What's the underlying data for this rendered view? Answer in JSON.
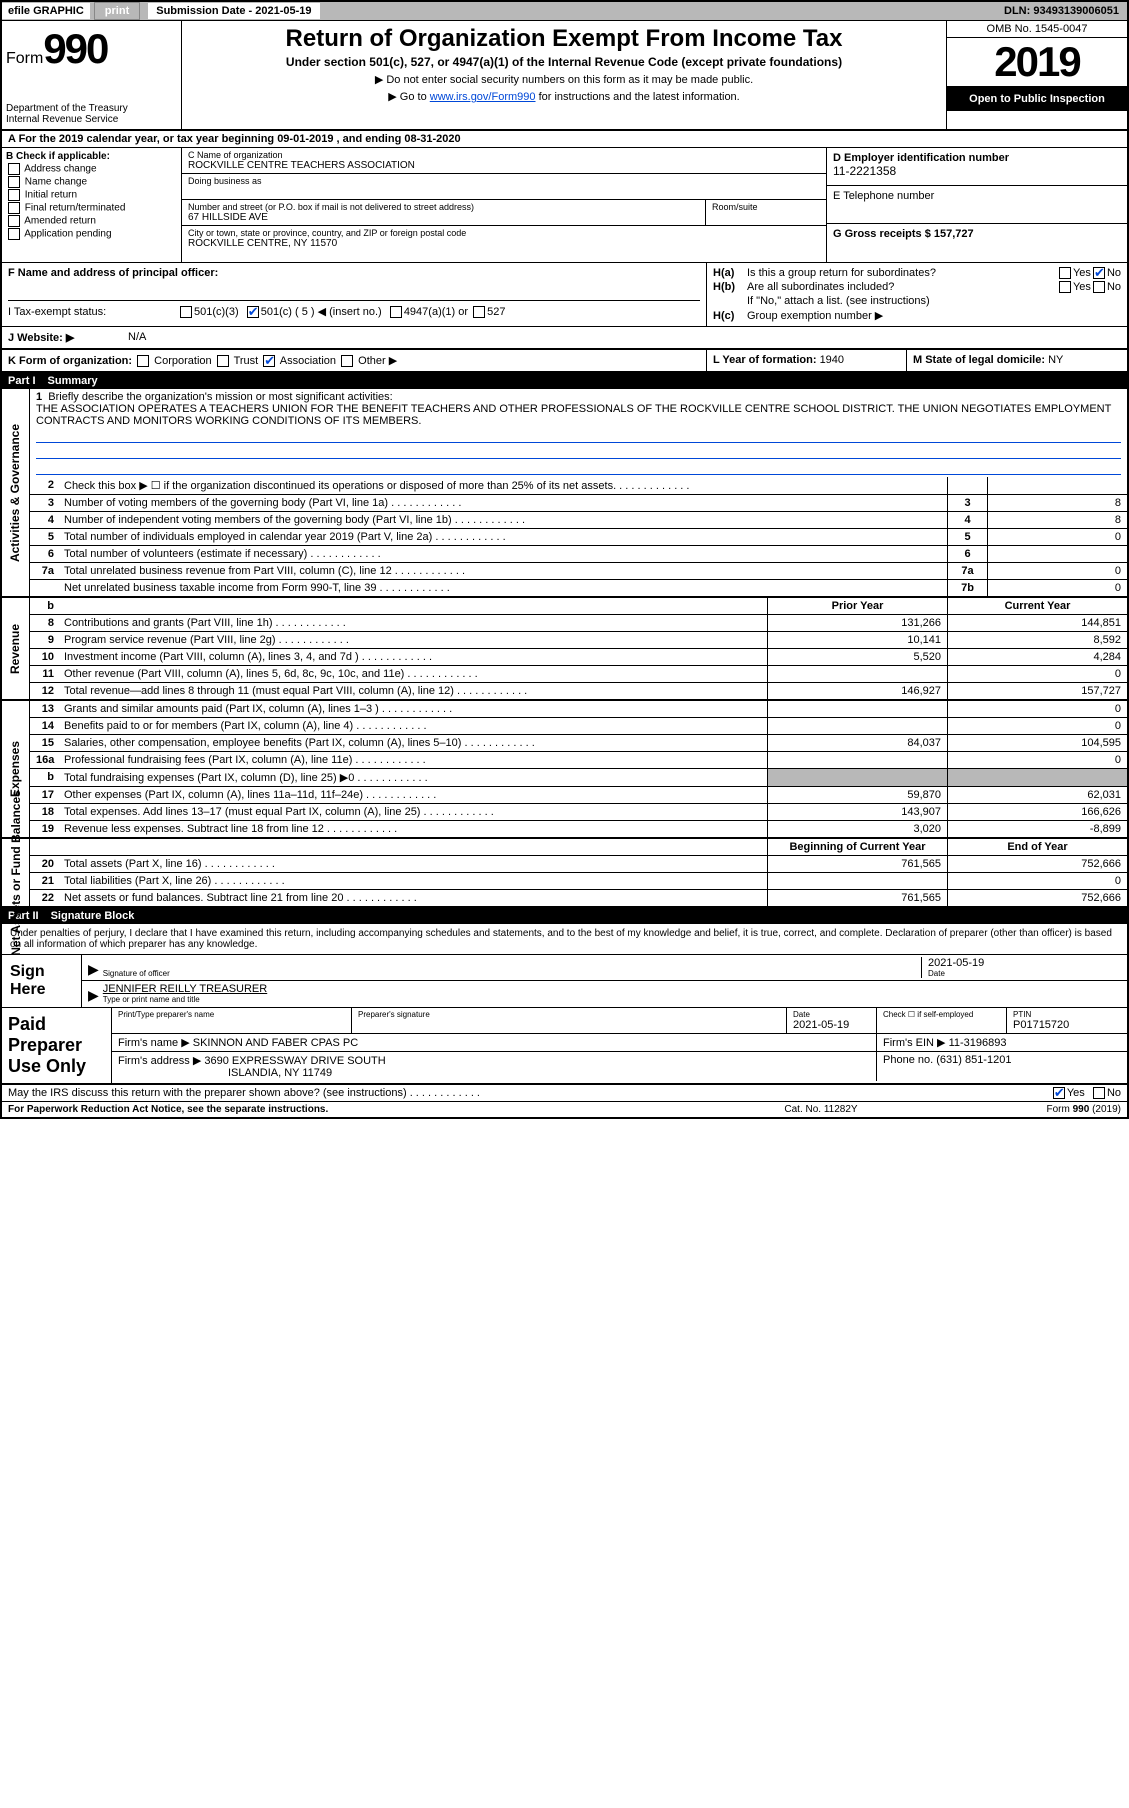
{
  "colors": {
    "header_gray": "#b8b8b8",
    "link_blue": "#0048d8",
    "black": "#000000",
    "white": "#ffffff"
  },
  "topbar": {
    "efile": "efile GRAPHIC",
    "print": "print",
    "submission_label": "Submission Date - 2021-05-19",
    "dln": "DLN: 93493139006051"
  },
  "header": {
    "form_label": "Form",
    "form_number": "990",
    "dept": "Department of the Treasury\nInternal Revenue Service",
    "title": "Return of Organization Exempt From Income Tax",
    "sub1": "Under section 501(c), 527, or 4947(a)(1) of the Internal Revenue Code (except private foundations)",
    "sub2": "▶ Do not enter social security numbers on this form as it may be made public.",
    "sub3_pre": "▶ Go to ",
    "sub3_link": "www.irs.gov/Form990",
    "sub3_post": " for instructions and the latest information.",
    "omb": "OMB No. 1545-0047",
    "year": "2019",
    "open": "Open to Public Inspection"
  },
  "rowA": "A   For the 2019 calendar year, or tax year beginning 09-01-2019    , and ending 08-31-2020",
  "colB": {
    "hdr": "B Check if applicable:",
    "opts": [
      "Address change",
      "Name change",
      "Initial return",
      "Final return/terminated",
      "Amended return",
      "Application pending"
    ]
  },
  "colC": {
    "name_lbl": "C Name of organization",
    "name_val": "ROCKVILLE CENTRE TEACHERS ASSOCIATION",
    "dba_lbl": "Doing business as",
    "addr_lbl": "Number and street (or P.O. box if mail is not delivered to street address)",
    "room_lbl": "Room/suite",
    "addr_val": "67 HILLSIDE AVE",
    "city_lbl": "City or town, state or province, country, and ZIP or foreign postal code",
    "city_val": "ROCKVILLE CENTRE, NY  11570"
  },
  "colD": {
    "ein_lbl": "D Employer identification number",
    "ein_val": "11-2221358",
    "tel_lbl": "E Telephone number",
    "gross_lbl": "G Gross receipts $ 157,727"
  },
  "rowF": {
    "lbl": "F  Name and address of principal officer:"
  },
  "colH": {
    "ha_lbl": "H(a)",
    "ha_text": "Is this a group return for subordinates?",
    "ha_yes": "Yes",
    "ha_no": "No",
    "hb_lbl": "H(b)",
    "hb_text": "Are all subordinates included?",
    "hb_note": "If \"No,\" attach a list. (see instructions)",
    "hc_lbl": "H(c)",
    "hc_text": "Group exemption number ▶"
  },
  "taxexempt": {
    "lbl": "I    Tax-exempt status:",
    "o1": "501(c)(3)",
    "o2": "501(c) ( 5 ) ◀ (insert no.)",
    "o3": "4947(a)(1) or",
    "o4": "527"
  },
  "website": {
    "lbl": "J   Website: ▶",
    "val": "N/A"
  },
  "rowK": {
    "k": "K Form of organization:",
    "opts": [
      "Corporation",
      "Trust",
      "Association",
      "Other ▶"
    ],
    "l_lbl": "L Year of formation: ",
    "l_val": "1940",
    "m_lbl": "M State of legal domicile: ",
    "m_val": "NY"
  },
  "part1_hdr": {
    "pn": "Part I",
    "title": "Summary"
  },
  "sections": {
    "ag": "Activities & Governance",
    "rev": "Revenue",
    "exp": "Expenses",
    "na": "Net Assets or Fund Balances"
  },
  "mission": {
    "num": "1",
    "lbl": "Briefly describe the organization's mission or most significant activities:",
    "text": "THE ASSOCIATION OPERATES A TEACHERS UNION FOR THE BENEFIT TEACHERS AND OTHER PROFESSIONALS OF THE ROCKVILLE CENTRE SCHOOL DISTRICT. THE UNION NEGOTIATES EMPLOYMENT CONTRACTS AND MONITORS WORKING CONDITIONS OF ITS MEMBERS."
  },
  "ag_rows": [
    {
      "n": "2",
      "d": "Check this box ▶ ☐  if the organization discontinued its operations or disposed of more than 25% of its net assets.",
      "box": "",
      "v": ""
    },
    {
      "n": "3",
      "d": "Number of voting members of the governing body (Part VI, line 1a)",
      "box": "3",
      "v": "8"
    },
    {
      "n": "4",
      "d": "Number of independent voting members of the governing body (Part VI, line 1b)",
      "box": "4",
      "v": "8"
    },
    {
      "n": "5",
      "d": "Total number of individuals employed in calendar year 2019 (Part V, line 2a)",
      "box": "5",
      "v": "0"
    },
    {
      "n": "6",
      "d": "Total number of volunteers (estimate if necessary)",
      "box": "6",
      "v": ""
    },
    {
      "n": "7a",
      "d": "Total unrelated business revenue from Part VIII, column (C), line 12",
      "box": "7a",
      "v": "0"
    },
    {
      "n": "",
      "d": "Net unrelated business taxable income from Form 990-T, line 39",
      "box": "7b",
      "v": "0"
    }
  ],
  "pycy_hdr": {
    "b": "b",
    "py": "Prior Year",
    "cy": "Current Year"
  },
  "rev_rows": [
    {
      "n": "8",
      "d": "Contributions and grants (Part VIII, line 1h)",
      "py": "131,266",
      "cy": "144,851"
    },
    {
      "n": "9",
      "d": "Program service revenue (Part VIII, line 2g)",
      "py": "10,141",
      "cy": "8,592"
    },
    {
      "n": "10",
      "d": "Investment income (Part VIII, column (A), lines 3, 4, and 7d )",
      "py": "5,520",
      "cy": "4,284"
    },
    {
      "n": "11",
      "d": "Other revenue (Part VIII, column (A), lines 5, 6d, 8c, 9c, 10c, and 11e)",
      "py": "",
      "cy": "0"
    },
    {
      "n": "12",
      "d": "Total revenue—add lines 8 through 11 (must equal Part VIII, column (A), line 12)",
      "py": "146,927",
      "cy": "157,727"
    }
  ],
  "exp_rows": [
    {
      "n": "13",
      "d": "Grants and similar amounts paid (Part IX, column (A), lines 1–3 )",
      "py": "",
      "cy": "0"
    },
    {
      "n": "14",
      "d": "Benefits paid to or for members (Part IX, column (A), line 4)",
      "py": "",
      "cy": "0"
    },
    {
      "n": "15",
      "d": "Salaries, other compensation, employee benefits (Part IX, column (A), lines 5–10)",
      "py": "84,037",
      "cy": "104,595"
    },
    {
      "n": "16a",
      "d": "Professional fundraising fees (Part IX, column (A), line 11e)",
      "py": "",
      "cy": "0"
    },
    {
      "n": "b",
      "d": "Total fundraising expenses (Part IX, column (D), line 25) ▶0",
      "py": "SHADE",
      "cy": "SHADE"
    },
    {
      "n": "17",
      "d": "Other expenses (Part IX, column (A), lines 11a–11d, 11f–24e)",
      "py": "59,870",
      "cy": "62,031"
    },
    {
      "n": "18",
      "d": "Total expenses. Add lines 13–17 (must equal Part IX, column (A), line 25)",
      "py": "143,907",
      "cy": "166,626"
    },
    {
      "n": "19",
      "d": "Revenue less expenses. Subtract line 18 from line 12",
      "py": "3,020",
      "cy": "-8,899"
    }
  ],
  "na_hdr": {
    "py": "Beginning of Current Year",
    "cy": "End of Year"
  },
  "na_rows": [
    {
      "n": "20",
      "d": "Total assets (Part X, line 16)",
      "py": "761,565",
      "cy": "752,666"
    },
    {
      "n": "21",
      "d": "Total liabilities (Part X, line 26)",
      "py": "",
      "cy": "0"
    },
    {
      "n": "22",
      "d": "Net assets or fund balances. Subtract line 21 from line 20",
      "py": "761,565",
      "cy": "752,666"
    }
  ],
  "part2_hdr": {
    "pn": "Part II",
    "title": "Signature Block"
  },
  "sig": {
    "decl": "Under penalties of perjury, I declare that I have examined this return, including accompanying schedules and statements, and to the best of my knowledge and belief, it is true, correct, and complete. Declaration of preparer (other than officer) is based on all information of which preparer has any knowledge.",
    "sign_here": "Sign Here",
    "sig_of_officer": "Signature of officer",
    "date_lbl": "Date",
    "date_val": "2021-05-19",
    "name_title": "JENNIFER REILLY  TREASURER",
    "name_title_lbl": "Type or print name and title"
  },
  "prep": {
    "lbl": "Paid Preparer Use Only",
    "print_name_lbl": "Print/Type preparer's name",
    "prep_sig_lbl": "Preparer's signature",
    "date_lbl": "Date",
    "date_val": "2021-05-19",
    "check_lbl": "Check ☐ if self-employed",
    "ptin_lbl": "PTIN",
    "ptin_val": "P01715720",
    "firm_name_lbl": "Firm's name    ▶",
    "firm_name_val": "SKINNON AND FABER CPAS PC",
    "firm_ein_lbl": "Firm's EIN ▶",
    "firm_ein_val": "11-3196893",
    "firm_addr_lbl": "Firm's address ▶",
    "firm_addr_val1": "3690 EXPRESSWAY DRIVE SOUTH",
    "firm_addr_val2": "ISLANDIA, NY  11749",
    "phone_lbl": "Phone no. ",
    "phone_val": "(631) 851-1201"
  },
  "discuss": {
    "text": "May the IRS discuss this return with the preparer shown above? (see instructions)",
    "yes": "Yes",
    "no": "No"
  },
  "footer": {
    "left": "For Paperwork Reduction Act Notice, see the separate instructions.",
    "mid": "Cat. No. 11282Y",
    "right": "Form 990 (2019)"
  }
}
